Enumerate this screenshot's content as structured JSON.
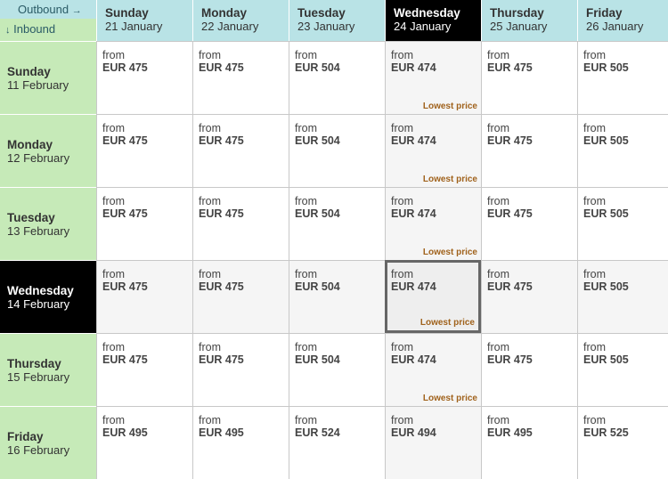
{
  "corner": {
    "outbound": "Outbound",
    "outbound_arrow": "→",
    "inbound_arrow": "↓",
    "inbound": "Inbound"
  },
  "columns": [
    {
      "day": "Sunday",
      "date": "21 January"
    },
    {
      "day": "Monday",
      "date": "22 January"
    },
    {
      "day": "Tuesday",
      "date": "23 January"
    },
    {
      "day": "Wednesday",
      "date": "24 January"
    },
    {
      "day": "Thursday",
      "date": "25 January"
    },
    {
      "day": "Friday",
      "date": "26 January"
    }
  ],
  "selected_column": 3,
  "selected_row": 3,
  "rows": [
    {
      "day": "Sunday",
      "date": "11 February",
      "prices": [
        "EUR 475",
        "EUR 475",
        "EUR 504",
        "EUR 474",
        "EUR 475",
        "EUR 505"
      ]
    },
    {
      "day": "Monday",
      "date": "12 February",
      "prices": [
        "EUR 475",
        "EUR 475",
        "EUR 504",
        "EUR 474",
        "EUR 475",
        "EUR 505"
      ]
    },
    {
      "day": "Tuesday",
      "date": "13 February",
      "prices": [
        "EUR 475",
        "EUR 475",
        "EUR 504",
        "EUR 474",
        "EUR 475",
        "EUR 505"
      ]
    },
    {
      "day": "Wednesday",
      "date": "14 February",
      "prices": [
        "EUR 475",
        "EUR 475",
        "EUR 504",
        "EUR 474",
        "EUR 475",
        "EUR 505"
      ]
    },
    {
      "day": "Thursday",
      "date": "15 February",
      "prices": [
        "EUR 475",
        "EUR 475",
        "EUR 504",
        "EUR 474",
        "EUR 475",
        "EUR 505"
      ]
    },
    {
      "day": "Friday",
      "date": "16 February",
      "prices": [
        "EUR 495",
        "EUR 495",
        "EUR 524",
        "EUR 494",
        "EUR 495",
        "EUR 525"
      ]
    }
  ],
  "from_label": "from",
  "lowest_label": "Lowest price",
  "lowest_column": 3,
  "lowest_rows": [
    0,
    1,
    2,
    3,
    4
  ],
  "colors": {
    "outbound_bg": "#b9e3e6",
    "inbound_bg": "#c6eab8",
    "selected": "#000000",
    "lowest_text": "#a0621c"
  }
}
